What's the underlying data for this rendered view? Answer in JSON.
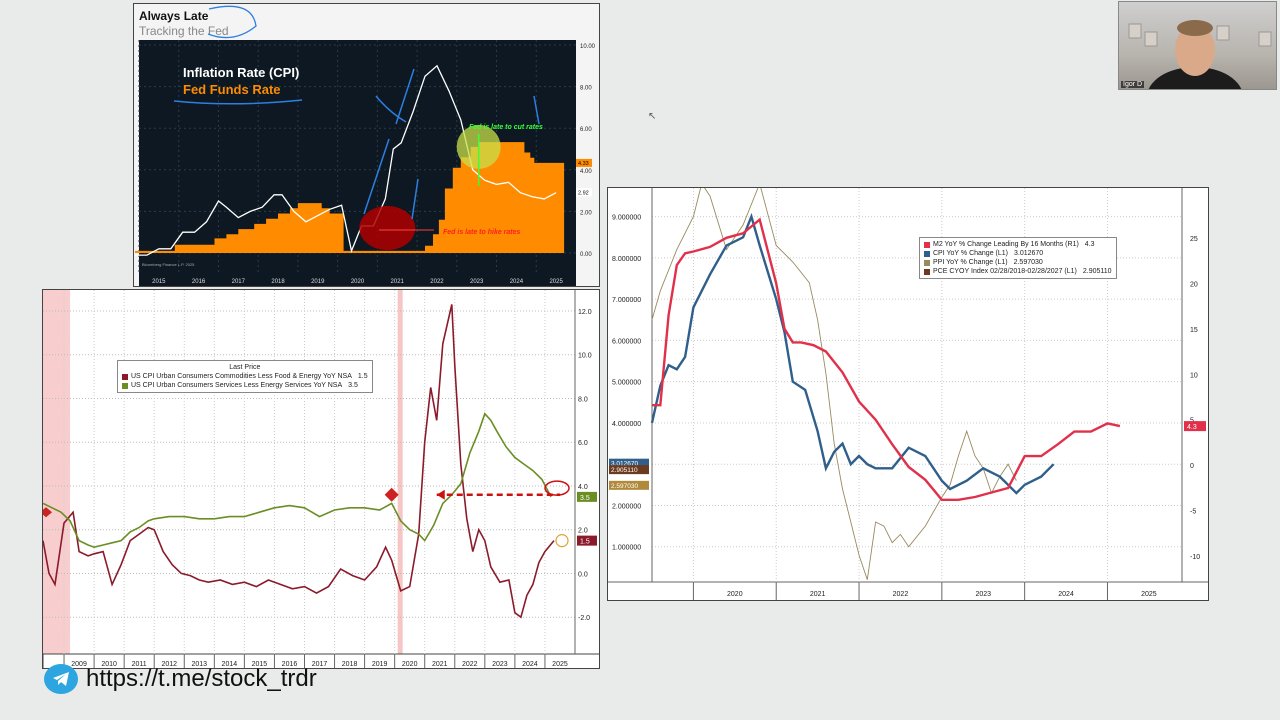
{
  "footer": {
    "link": "https://t.me/stock_trdr",
    "icon": "telegram-icon"
  },
  "webcam": {
    "name": "Igor D"
  },
  "chart_data": [
    {
      "id": "fed-chart",
      "type": "line",
      "title": "Always Late",
      "subtitle": "Tracking the Fed",
      "annotations": {
        "cpi_label": "Inflation Rate (CPI)",
        "ffr_label": "Fed Funds Rate",
        "late_cut": "Fed is late to cut rates",
        "late_hike": "Fed is late to hike rates",
        "source": "Bloomberg Finance L.P. 2025"
      },
      "x_ticks": [
        "2015",
        "2016",
        "2017",
        "2018",
        "2019",
        "2020",
        "2021",
        "2022",
        "2023",
        "2024",
        "2025"
      ],
      "y_ticks": [
        "10.00",
        "8.00",
        "6.00",
        "4.00",
        "2.00",
        "0.00"
      ],
      "ylim": [
        0,
        10
      ],
      "xlim": [
        2015,
        2026
      ],
      "last_values": {
        "ffr": "4.33",
        "cpi": "2.92"
      },
      "colors": {
        "cpi": "#ffffff",
        "ffr": "#ff8c00",
        "bg": "#0d1822",
        "late_cut": "#3cff3c",
        "late_hike": "#ff2020"
      },
      "series": [
        {
          "name": "Inflation Rate (CPI)",
          "x": [
            2014.9,
            2015.2,
            2015.5,
            2015.8,
            2016.1,
            2016.4,
            2016.7,
            2017.0,
            2017.2,
            2017.5,
            2017.8,
            2018.1,
            2018.4,
            2018.6,
            2018.9,
            2019.2,
            2019.5,
            2019.8,
            2020.1,
            2020.35,
            2020.6,
            2020.9,
            2021.2,
            2021.4,
            2021.6,
            2021.9,
            2022.2,
            2022.5,
            2022.8,
            2023.1,
            2023.4,
            2023.7,
            2024.0,
            2024.3,
            2024.6,
            2024.9,
            2025.2,
            2025.5
          ],
          "y": [
            -0.1,
            -0.1,
            0.2,
            0.2,
            1.0,
            1.0,
            1.5,
            2.5,
            2.2,
            1.7,
            2.0,
            2.2,
            2.8,
            2.8,
            2.0,
            1.5,
            1.8,
            2.1,
            2.3,
            0.1,
            1.3,
            1.3,
            2.6,
            5.0,
            5.3,
            6.8,
            8.5,
            9.0,
            7.8,
            6.4,
            4.0,
            3.5,
            3.3,
            3.4,
            2.9,
            2.7,
            2.6,
            2.9
          ]
        },
        {
          "name": "Fed Funds Rate",
          "x": [
            2014.9,
            2015.9,
            2016.9,
            2017.2,
            2017.5,
            2017.9,
            2018.2,
            2018.5,
            2018.8,
            2019.0,
            2019.6,
            2019.8,
            2020.15,
            2022.2,
            2022.4,
            2022.55,
            2022.7,
            2022.9,
            2023.1,
            2023.35,
            2023.55,
            2024.7,
            2024.85,
            2024.95,
            2025.5
          ],
          "y": [
            0.1,
            0.4,
            0.7,
            0.9,
            1.15,
            1.4,
            1.65,
            1.9,
            2.15,
            2.4,
            2.15,
            1.9,
            0.1,
            0.35,
            0.9,
            1.6,
            3.1,
            4.1,
            4.6,
            5.1,
            5.33,
            4.83,
            4.58,
            4.33,
            4.33
          ]
        }
      ]
    },
    {
      "id": "cpi-components",
      "type": "line",
      "legend_title": "Last Price",
      "x_ticks": [
        "2009",
        "2010",
        "2011",
        "2012",
        "2013",
        "2014",
        "2015",
        "2016",
        "2017",
        "2018",
        "2019",
        "2020",
        "2021",
        "2022",
        "2023",
        "2024",
        "2025"
      ],
      "y_ticks": [
        "12.0",
        "10.0",
        "8.0",
        "6.0",
        "4.0",
        "2.0",
        "0.0",
        "-2.0"
      ],
      "ylim": [
        -3.5,
        12.5
      ],
      "xlim": [
        2008.3,
        2026.0
      ],
      "series": [
        {
          "name": "US CPI Urban Consumers Commodities Less Food & Energy YoY NSA",
          "last": "1.5",
          "color": "#8b1a2b",
          "x": [
            2008.3,
            2008.5,
            2008.7,
            2009.0,
            2009.3,
            2009.5,
            2009.8,
            2010.0,
            2010.3,
            2010.6,
            2010.9,
            2011.2,
            2011.5,
            2011.8,
            2012.0,
            2012.3,
            2012.6,
            2012.9,
            2013.2,
            2013.5,
            2013.8,
            2014.2,
            2014.6,
            2015.0,
            2015.4,
            2015.8,
            2016.2,
            2016.6,
            2017.0,
            2017.4,
            2017.8,
            2018.2,
            2018.6,
            2019.0,
            2019.4,
            2019.7,
            2019.9,
            2020.2,
            2020.5,
            2020.8,
            2021.0,
            2021.2,
            2021.4,
            2021.6,
            2021.9,
            2022.0,
            2022.2,
            2022.4,
            2022.6,
            2022.8,
            2023.0,
            2023.2,
            2023.5,
            2023.8,
            2024.0,
            2024.2,
            2024.4,
            2024.6,
            2024.8,
            2025.0,
            2025.3
          ],
          "y": [
            1.5,
            0.0,
            -0.5,
            2.3,
            2.8,
            1.0,
            0.8,
            0.9,
            1.0,
            -0.5,
            0.4,
            1.5,
            1.8,
            2.1,
            2.0,
            1.0,
            0.4,
            0.0,
            -0.1,
            -0.3,
            -0.4,
            -0.3,
            -0.5,
            -0.4,
            -0.6,
            -0.3,
            -0.5,
            -0.7,
            -0.6,
            -0.9,
            -0.6,
            0.2,
            -0.1,
            -0.3,
            0.3,
            1.2,
            0.6,
            -0.8,
            -0.6,
            1.8,
            6.0,
            8.5,
            7.0,
            10.5,
            12.3,
            9.5,
            5.0,
            2.5,
            1.0,
            2.0,
            1.5,
            0.3,
            -0.4,
            -0.3,
            -1.8,
            -2.0,
            -1.0,
            -0.5,
            0.5,
            1.0,
            1.5
          ]
        },
        {
          "name": "US CPI Urban Consumers Services Less Energy Services YoY NSA",
          "last": "3.5",
          "color": "#6b8e23",
          "x": [
            2008.3,
            2008.6,
            2008.9,
            2009.2,
            2009.5,
            2009.8,
            2010.0,
            2010.3,
            2010.6,
            2010.9,
            2011.2,
            2011.5,
            2011.8,
            2012.0,
            2012.5,
            2013.0,
            2013.5,
            2014.0,
            2014.5,
            2015.0,
            2015.5,
            2016.0,
            2016.5,
            2017.0,
            2017.5,
            2018.0,
            2018.5,
            2019.0,
            2019.5,
            2019.9,
            2020.2,
            2020.5,
            2020.8,
            2021.0,
            2021.3,
            2021.6,
            2021.9,
            2022.2,
            2022.5,
            2022.8,
            2023.0,
            2023.2,
            2023.4,
            2023.7,
            2024.0,
            2024.3,
            2024.6,
            2024.9,
            2025.2
          ],
          "y": [
            3.2,
            3.0,
            2.8,
            2.4,
            1.5,
            1.3,
            1.2,
            1.3,
            1.4,
            1.5,
            1.9,
            2.1,
            2.4,
            2.5,
            2.6,
            2.6,
            2.5,
            2.5,
            2.6,
            2.6,
            2.8,
            3.0,
            3.1,
            3.0,
            2.6,
            2.9,
            3.0,
            3.0,
            2.9,
            3.2,
            2.4,
            2.0,
            1.8,
            1.5,
            2.2,
            3.2,
            3.6,
            4.1,
            5.5,
            6.5,
            7.3,
            7.0,
            6.5,
            5.8,
            5.3,
            5.0,
            4.7,
            4.3,
            3.5
          ]
        }
      ]
    },
    {
      "id": "m2-lead",
      "type": "line",
      "x_ticks": [
        "2020",
        "2021",
        "2022",
        "2023",
        "2024",
        "2025"
      ],
      "y_left_ticks": [
        "9.000000",
        "8.000000",
        "7.000000",
        "6.000000",
        "5.000000",
        "4.000000",
        "3.000000",
        "2.000000",
        "1.000000"
      ],
      "y_right_ticks": [
        "25",
        "20",
        "15",
        "10",
        "5",
        "0",
        "-5",
        "-10"
      ],
      "ylim_left": [
        0,
        9.5
      ],
      "ylim_right": [
        -13.5,
        29.6
      ],
      "xlim": [
        2019.5,
        2025.9
      ],
      "last_labels": {
        "cpi": "3.012670",
        "pce": "2.905110",
        "ppi": "2.597030",
        "m2": "4.3"
      },
      "series": [
        {
          "name": "M2 YoY % Change Leading By 16 Months (R1)",
          "last": "4.3",
          "color": "#e0304a",
          "axis": "right",
          "x": [
            2019.5,
            2019.6,
            2019.7,
            2019.8,
            2019.9,
            2020.0,
            2020.2,
            2020.4,
            2020.6,
            2020.8,
            2021.0,
            2021.1,
            2021.2,
            2021.3,
            2021.45,
            2021.6,
            2021.8,
            2022.0,
            2022.2,
            2022.4,
            2022.6,
            2022.8,
            2023.0,
            2023.2,
            2023.4,
            2023.6,
            2023.8,
            2024.0,
            2024.2,
            2024.4,
            2024.6,
            2024.8,
            2025.0,
            2025.15
          ],
          "y": [
            6.6,
            6.6,
            16.5,
            22.0,
            23.3,
            23.5,
            24.0,
            25.0,
            25.5,
            27.0,
            20.0,
            15.0,
            13.5,
            13.5,
            13.2,
            12.5,
            10.2,
            7.0,
            5.0,
            2.3,
            -0.2,
            -1.6,
            -3.8,
            -3.8,
            -3.5,
            -3.0,
            -2.5,
            1.0,
            1.0,
            2.3,
            3.7,
            3.7,
            4.6,
            4.3
          ]
        },
        {
          "name": "CPI YoY % Change (L1)",
          "last": "3.012670",
          "color": "#2f5f8a",
          "axis": "left",
          "x": [
            2019.5,
            2019.6,
            2019.7,
            2019.8,
            2019.9,
            2020.0,
            2020.2,
            2020.4,
            2020.6,
            2020.7,
            2020.8,
            2021.0,
            2021.1,
            2021.2,
            2021.35,
            2021.5,
            2021.6,
            2021.7,
            2021.8,
            2021.9,
            2022.0,
            2022.1,
            2022.2,
            2022.4,
            2022.6,
            2022.8,
            2023.0,
            2023.1,
            2023.3,
            2023.5,
            2023.7,
            2023.9,
            2024.0,
            2024.2,
            2024.35
          ],
          "y": [
            4.0,
            4.9,
            5.4,
            5.3,
            5.6,
            6.8,
            7.6,
            8.3,
            8.5,
            9.0,
            8.3,
            7.0,
            6.2,
            5.0,
            4.8,
            3.8,
            2.9,
            3.3,
            3.5,
            3.0,
            3.2,
            3.0,
            2.9,
            2.9,
            3.4,
            3.2,
            2.6,
            2.4,
            2.6,
            2.9,
            2.7,
            2.3,
            2.5,
            2.7,
            3.0
          ]
        },
        {
          "name": "PPI YoY % Change (L1)",
          "last": "2.597030",
          "color": "#9a8a60",
          "axis": "left",
          "x": [
            2019.5,
            2019.6,
            2019.8,
            2020.0,
            2020.1,
            2020.2,
            2020.4,
            2020.6,
            2020.8,
            2021.0,
            2021.2,
            2021.4,
            2021.5,
            2021.6,
            2021.7,
            2021.8,
            2021.9,
            2022.0,
            2022.1,
            2022.2,
            2022.3,
            2022.4,
            2022.5,
            2022.6,
            2022.8,
            2023.0,
            2023.1,
            2023.2,
            2023.3,
            2023.4,
            2023.5,
            2023.6,
            2023.7,
            2023.8,
            2023.9
          ],
          "y": [
            6.5,
            7.2,
            8.2,
            9.0,
            9.8,
            9.5,
            8.2,
            8.8,
            9.8,
            8.3,
            7.9,
            7.4,
            6.5,
            5.2,
            3.5,
            2.4,
            1.6,
            0.8,
            0.2,
            1.6,
            1.5,
            1.1,
            1.3,
            1.0,
            1.5,
            2.2,
            2.5,
            3.2,
            3.8,
            3.2,
            2.9,
            2.3,
            2.7,
            3.0,
            2.6
          ]
        },
        {
          "name": "PCE CYOY Index 02/28/2018-02/28/2027 (L1)",
          "last": "2.905110",
          "color": "#6b3a1f",
          "axis": "left",
          "x": [],
          "y": []
        }
      ]
    }
  ]
}
